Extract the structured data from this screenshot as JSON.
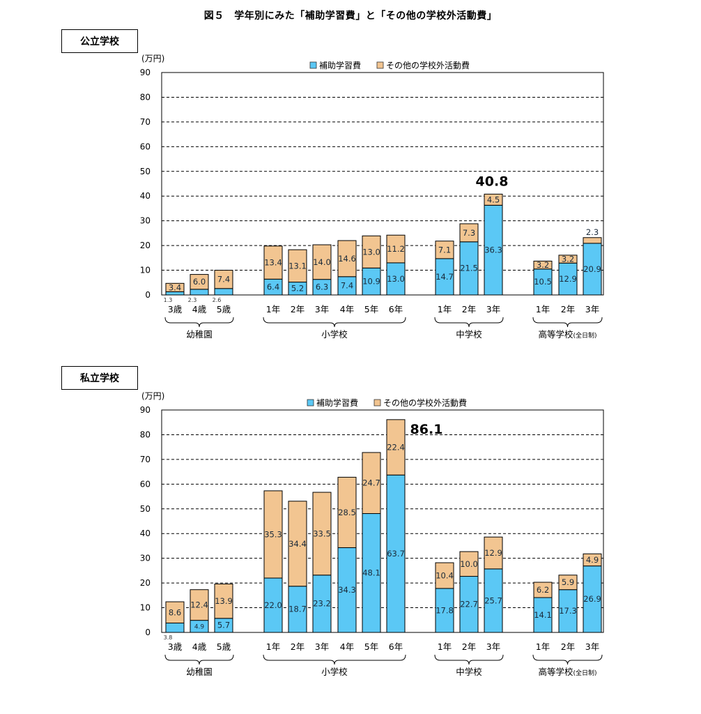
{
  "title": "図５　学年別にみた「補助学習費」と「その他の学校外活動費」",
  "colors": {
    "hojo": "#5bc8f5",
    "other": "#f2c591",
    "grid": "#000000"
  },
  "chart_data": [
    {
      "type": "bar",
      "stacked": true,
      "section_label": "公立学校",
      "unit_label": "(万円)",
      "ylim": [
        0,
        90
      ],
      "yticks": [
        0,
        10,
        20,
        30,
        40,
        50,
        60,
        70,
        80,
        90
      ],
      "grid": "dashed",
      "legend": [
        "補助学習費",
        "その他の学校外活動費"
      ],
      "categories": [
        "3歳",
        "4歳",
        "5歳",
        "1年",
        "2年",
        "3年",
        "4年",
        "5年",
        "6年",
        "1年",
        "2年",
        "3年",
        "1年",
        "2年",
        "3年"
      ],
      "groups": [
        {
          "label": "幼稚園",
          "count": 3
        },
        {
          "label": "小学校",
          "count": 6
        },
        {
          "label": "中学校",
          "count": 3
        },
        {
          "label": "高等学校",
          "sublabel": "(全日制)",
          "count": 3
        }
      ],
      "series": [
        {
          "name": "補助学習費",
          "values": [
            1.3,
            2.3,
            2.6,
            6.4,
            5.2,
            6.3,
            7.4,
            10.9,
            13.0,
            14.7,
            21.5,
            36.3,
            10.5,
            12.9,
            20.9
          ]
        },
        {
          "name": "その他の学校外活動費",
          "values": [
            3.4,
            6.0,
            7.4,
            13.4,
            13.1,
            14.0,
            14.6,
            13.0,
            11.2,
            7.1,
            7.3,
            4.5,
            3.2,
            3.2,
            2.3
          ]
        }
      ],
      "callout": {
        "text": "40.8",
        "index": 11
      }
    },
    {
      "type": "bar",
      "stacked": true,
      "section_label": "私立学校",
      "unit_label": "(万円)",
      "ylim": [
        0,
        90
      ],
      "yticks": [
        0,
        10,
        20,
        30,
        40,
        50,
        60,
        70,
        80,
        90
      ],
      "grid": "dashed",
      "legend": [
        "補助学習費",
        "その他の学校外活動費"
      ],
      "categories": [
        "3歳",
        "4歳",
        "5歳",
        "1年",
        "2年",
        "3年",
        "4年",
        "5年",
        "6年",
        "1年",
        "2年",
        "3年",
        "1年",
        "2年",
        "3年"
      ],
      "groups": [
        {
          "label": "幼稚園",
          "count": 3
        },
        {
          "label": "小学校",
          "count": 6
        },
        {
          "label": "中学校",
          "count": 3
        },
        {
          "label": "高等学校",
          "sublabel": "(全日制)",
          "count": 3
        }
      ],
      "series": [
        {
          "name": "補助学習費",
          "values": [
            3.8,
            4.9,
            5.7,
            22.0,
            18.7,
            23.2,
            34.3,
            48.1,
            63.7,
            17.8,
            22.7,
            25.7,
            14.1,
            17.3,
            26.9
          ]
        },
        {
          "name": "その他の学校外活動費",
          "values": [
            8.6,
            12.4,
            13.9,
            35.3,
            34.4,
            33.5,
            28.5,
            24.7,
            22.4,
            10.4,
            10.0,
            12.9,
            6.2,
            5.9,
            4.9
          ]
        }
      ],
      "callout": {
        "text": "86.1",
        "index": 8
      }
    }
  ]
}
